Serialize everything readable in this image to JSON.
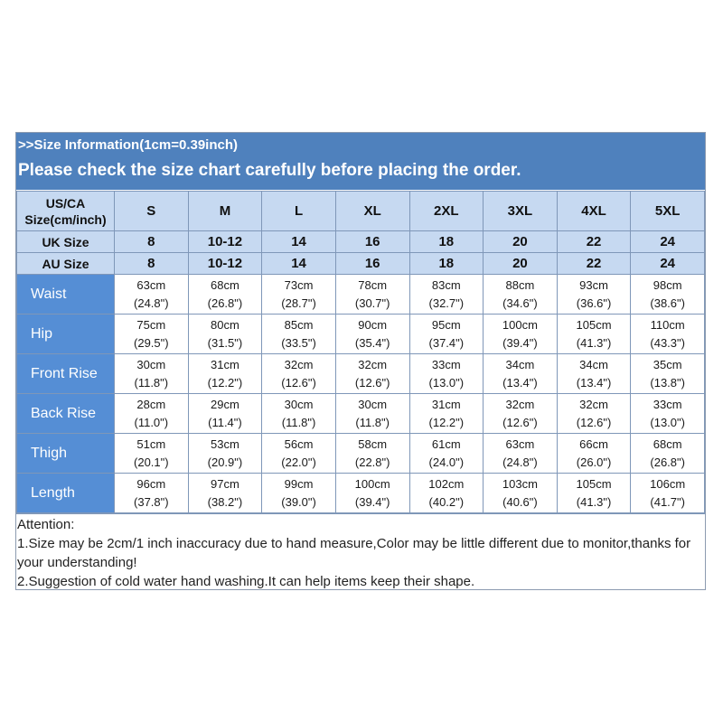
{
  "header": {
    "info": ">>Size Information(1cm=0.39inch)",
    "warning": "Please check the size chart carefully before placing the order."
  },
  "head_rows": [
    {
      "label": "US/CA\nSize(cm/inch)",
      "values": [
        "S",
        "M",
        "L",
        "XL",
        "2XL",
        "3XL",
        "4XL",
        "5XL"
      ]
    },
    {
      "label": "UK Size",
      "values": [
        "8",
        "10-12",
        "14",
        "16",
        "18",
        "20",
        "22",
        "24"
      ]
    },
    {
      "label": "AU Size",
      "values": [
        "8",
        "10-12",
        "14",
        "16",
        "18",
        "20",
        "22",
        "24"
      ]
    }
  ],
  "measurements": [
    {
      "label": "Waist",
      "cm": [
        "63cm",
        "68cm",
        "73cm",
        "78cm",
        "83cm",
        "88cm",
        "93cm",
        "98cm"
      ],
      "inch": [
        "(24.8\")",
        "(26.8\")",
        "(28.7\")",
        "(30.7\")",
        "(32.7\")",
        "(34.6\")",
        "(36.6\")",
        "(38.6\")"
      ]
    },
    {
      "label": "Hip",
      "cm": [
        "75cm",
        "80cm",
        "85cm",
        "90cm",
        "95cm",
        "100cm",
        "105cm",
        "110cm"
      ],
      "inch": [
        "(29.5\")",
        "(31.5\")",
        "(33.5\")",
        "(35.4\")",
        "(37.4\")",
        "(39.4\")",
        "(41.3\")",
        "(43.3\")"
      ]
    },
    {
      "label": "Front Rise",
      "cm": [
        "30cm",
        "31cm",
        "32cm",
        "32cm",
        "33cm",
        "34cm",
        "34cm",
        "35cm"
      ],
      "inch": [
        "(11.8\")",
        "(12.2\")",
        "(12.6\")",
        "(12.6\")",
        "(13.0\")",
        "(13.4\")",
        "(13.4\")",
        "(13.8\")"
      ]
    },
    {
      "label": "Back Rise",
      "cm": [
        "28cm",
        "29cm",
        "30cm",
        "30cm",
        "31cm",
        "32cm",
        "32cm",
        "33cm"
      ],
      "inch": [
        "(11.0\")",
        "(11.4\")",
        "(11.8\")",
        "(11.8\")",
        "(12.2\")",
        "(12.6\")",
        "(12.6\")",
        "(13.0\")"
      ]
    },
    {
      "label": "Thigh",
      "cm": [
        "51cm",
        "53cm",
        "56cm",
        "58cm",
        "61cm",
        "63cm",
        "66cm",
        "68cm"
      ],
      "inch": [
        "(20.1\")",
        "(20.9\")",
        "(22.0\")",
        "(22.8\")",
        "(24.0\")",
        "(24.8\")",
        "(26.0\")",
        "(26.8\")"
      ]
    },
    {
      "label": "Length",
      "cm": [
        "96cm",
        "97cm",
        "99cm",
        "100cm",
        "102cm",
        "103cm",
        "105cm",
        "106cm"
      ],
      "inch": [
        "(37.8\")",
        "(38.2\")",
        "(39.0\")",
        "(39.4\")",
        "(40.2\")",
        "(40.6\")",
        "(41.3\")",
        "(41.7\")"
      ]
    }
  ],
  "notes": [
    "Attention:",
    "1.Size may be 2cm/1 inch inaccuracy due to hand measure,Color may be little different due to monitor,thanks for your understanding!",
    "2.Suggestion of cold water hand washing.It can help items keep their shape."
  ],
  "colors": {
    "header_bg": "#4f81bd",
    "size_row_bg": "#c6d9f1",
    "label_col_bg": "#558ed5"
  }
}
